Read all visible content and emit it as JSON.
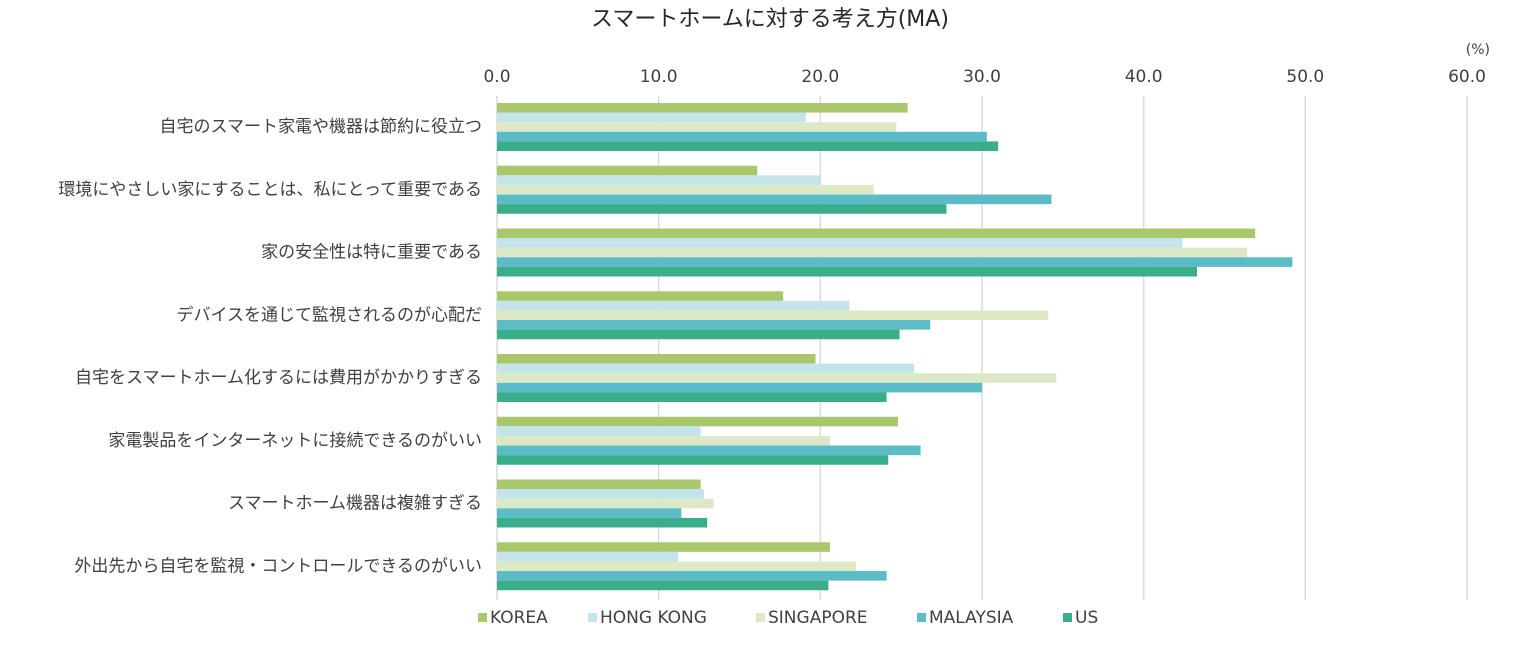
{
  "chart_data": {
    "type": "hbar",
    "title": "スマートホームに対する考え方(MA)",
    "unit_label": "(%)",
    "categories": [
      "自宅のスマート家電や機器は節約に役立つ",
      "環境にやさしい家にすることは、私にとって重要である",
      "家の安全性は特に重要である",
      "デバイスを通じて監視されるのが心配だ",
      "自宅をスマートホーム化するには費用がかかりすぎる",
      "家電製品をインターネットに接続できるのがいい",
      "スマートホーム機器は複雑すぎる",
      "外出先から自宅を監視・コントロールできるのがいい"
    ],
    "series": [
      {
        "name": "KOREA",
        "color": "#a9c86b",
        "values": [
          25.4,
          16.1,
          46.9,
          17.7,
          19.7,
          24.8,
          12.6,
          20.6
        ]
      },
      {
        "name": "HONG KONG",
        "color": "#c3e4ea",
        "values": [
          19.1,
          20.0,
          42.4,
          21.8,
          25.8,
          12.6,
          12.8,
          11.2
        ]
      },
      {
        "name": "SINGAPORE",
        "color": "#dde9c6",
        "values": [
          24.7,
          23.3,
          46.4,
          34.1,
          34.6,
          20.6,
          13.4,
          22.2
        ]
      },
      {
        "name": "MALAYSIA",
        "color": "#5bbcc8",
        "values": [
          30.3,
          34.3,
          49.2,
          26.8,
          30.0,
          26.2,
          11.4,
          24.1
        ]
      },
      {
        "name": "US",
        "color": "#3aae8a",
        "values": [
          31.0,
          27.8,
          43.3,
          24.9,
          24.1,
          24.2,
          13.0,
          20.5
        ]
      }
    ],
    "xlim": [
      0,
      60
    ],
    "xticks": [
      {
        "value": 0,
        "label": "0.0"
      },
      {
        "value": 10,
        "label": "10.0"
      },
      {
        "value": 20,
        "label": "20.0"
      },
      {
        "value": 30,
        "label": "30.0"
      },
      {
        "value": 40,
        "label": "40.0"
      },
      {
        "value": 50,
        "label": "50.0"
      },
      {
        "value": 60,
        "label": "60.0"
      }
    ],
    "grid": true,
    "legend": "bottom"
  }
}
